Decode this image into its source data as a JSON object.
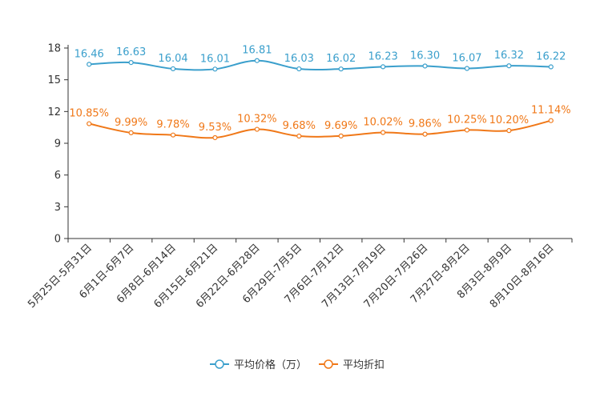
{
  "chart_data": {
    "type": "line",
    "title": "",
    "xlabel": "",
    "ylabel": "",
    "ylim": [
      0,
      18
    ],
    "yticks": [
      "0",
      "3",
      "6",
      "9",
      "12",
      "15",
      "18"
    ],
    "categories": [
      "5月25日-5月31日",
      "6月1日-6月7日",
      "6月8日-6月14日",
      "6月15日-6月21日",
      "6月22日-6月28日",
      "6月29日-7月5日",
      "7月6日-7月12日",
      "7月13日-7月19日",
      "7月20日-7月26日",
      "7月27日-8月2日",
      "8月3日-8月9日",
      "8月10日-8月16日"
    ],
    "series": [
      {
        "name": "平均价格（万）",
        "color": "#3a9fcc",
        "values": [
          16.46,
          16.63,
          16.04,
          16.01,
          16.81,
          16.03,
          16.02,
          16.23,
          16.3,
          16.07,
          16.32,
          16.22
        ],
        "labels": [
          "16.46",
          "16.63",
          "16.04",
          "16.01",
          "16.81",
          "16.03",
          "16.02",
          "16.23",
          "16.30",
          "16.07",
          "16.32",
          "16.22"
        ]
      },
      {
        "name": "平均折扣",
        "color": "#f07818",
        "values": [
          10.85,
          9.99,
          9.78,
          9.53,
          10.32,
          9.68,
          9.69,
          10.02,
          9.86,
          10.25,
          10.2,
          11.14
        ],
        "labels": [
          "10.85%",
          "9.99%",
          "9.78%",
          "9.53%",
          "10.32%",
          "9.68%",
          "9.69%",
          "10.02%",
          "9.86%",
          "10.25%",
          "10.20%",
          "11.14%"
        ]
      }
    ],
    "legend_position": "bottom-center"
  }
}
